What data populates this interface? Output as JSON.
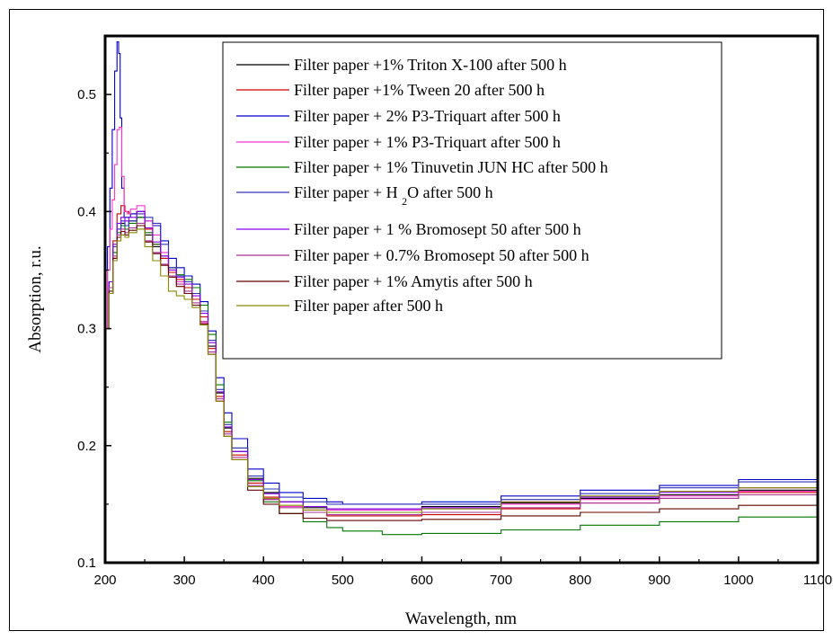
{
  "chart_data": {
    "type": "line",
    "xlabel": "Wavelength, nm",
    "ylabel": "Absorption, r.u.",
    "xlim": [
      200,
      1100
    ],
    "ylim": [
      0.1,
      0.55
    ],
    "x_ticks": [
      200,
      300,
      400,
      500,
      600,
      700,
      800,
      900,
      1000,
      1100
    ],
    "y_ticks": [
      0.1,
      0.2,
      0.3,
      0.4,
      0.5
    ],
    "grid": false,
    "legend_position": "top-right",
    "series": [
      {
        "name": "Filter paper +1% Triton X-100 after 500 h",
        "color": "#000000",
        "x": [
          200,
          205,
          210,
          215,
          220,
          225,
          230,
          240,
          250,
          260,
          270,
          280,
          290,
          300,
          310,
          320,
          330,
          340,
          350,
          360,
          380,
          400,
          420,
          450,
          480,
          500,
          600,
          700,
          800,
          900,
          1000,
          1100
        ],
        "y": [
          0.3,
          0.33,
          0.36,
          0.385,
          0.39,
          0.388,
          0.392,
          0.395,
          0.38,
          0.37,
          0.36,
          0.35,
          0.345,
          0.335,
          0.325,
          0.31,
          0.285,
          0.245,
          0.215,
          0.195,
          0.172,
          0.16,
          0.152,
          0.147,
          0.145,
          0.145,
          0.148,
          0.151,
          0.155,
          0.158,
          0.162,
          0.167
        ]
      },
      {
        "name": "Filter paper +1%  Tween 20 after 500 h",
        "color": "#cc0000",
        "x": [
          200,
          205,
          210,
          215,
          220,
          225,
          230,
          240,
          250,
          260,
          270,
          280,
          290,
          300,
          310,
          320,
          330,
          340,
          350,
          360,
          380,
          400,
          420,
          450,
          480,
          500,
          600,
          700,
          800,
          900,
          1000,
          1100
        ],
        "y": [
          0.3,
          0.34,
          0.375,
          0.398,
          0.405,
          0.4,
          0.398,
          0.4,
          0.385,
          0.372,
          0.36,
          0.348,
          0.342,
          0.335,
          0.325,
          0.31,
          0.283,
          0.242,
          0.212,
          0.192,
          0.168,
          0.156,
          0.148,
          0.143,
          0.14,
          0.14,
          0.141,
          0.146,
          0.151,
          0.155,
          0.16,
          0.165
        ]
      },
      {
        "name": "Filter paper + 2%  P3-Triquart after 500 h",
        "color": "#0000cc",
        "x": [
          200,
          203,
          206,
          209,
          212,
          215,
          217,
          219,
          221,
          224,
          228,
          232,
          240,
          250,
          260,
          270,
          280,
          290,
          300,
          310,
          320,
          330,
          340,
          350,
          360,
          380,
          400,
          420,
          450,
          480,
          500,
          600,
          700,
          800,
          900,
          1000,
          1100
        ],
        "y": [
          0.3,
          0.37,
          0.42,
          0.47,
          0.52,
          0.545,
          0.535,
          0.48,
          0.42,
          0.395,
          0.395,
          0.398,
          0.4,
          0.392,
          0.388,
          0.375,
          0.36,
          0.352,
          0.345,
          0.338,
          0.323,
          0.298,
          0.258,
          0.228,
          0.206,
          0.18,
          0.168,
          0.16,
          0.155,
          0.152,
          0.15,
          0.152,
          0.157,
          0.162,
          0.166,
          0.171,
          0.177
        ]
      },
      {
        "name": "Filter paper + 1%  P3-Triquart after 500 h",
        "color": "#ff33cc",
        "x": [
          200,
          203,
          206,
          209,
          212,
          215,
          218,
          221,
          224,
          228,
          232,
          240,
          250,
          260,
          270,
          280,
          290,
          300,
          310,
          320,
          330,
          340,
          350,
          360,
          380,
          400,
          420,
          450,
          480,
          500,
          600,
          700,
          800,
          900,
          1000,
          1100
        ],
        "y": [
          0.3,
          0.35,
          0.385,
          0.41,
          0.44,
          0.47,
          0.472,
          0.43,
          0.4,
          0.398,
          0.402,
          0.405,
          0.392,
          0.38,
          0.365,
          0.352,
          0.34,
          0.33,
          0.32,
          0.305,
          0.28,
          0.238,
          0.208,
          0.188,
          0.165,
          0.154,
          0.148,
          0.145,
          0.145,
          0.145,
          0.146,
          0.15,
          0.154,
          0.157,
          0.161,
          0.166
        ]
      },
      {
        "name": "Filter paper + 1%  Tinuvetin JUN HC after 500 h",
        "color": "#007700",
        "x": [
          200,
          205,
          210,
          215,
          220,
          225,
          230,
          240,
          250,
          260,
          270,
          280,
          290,
          300,
          310,
          320,
          330,
          340,
          350,
          360,
          380,
          400,
          420,
          450,
          480,
          500,
          550,
          600,
          700,
          800,
          900,
          1000,
          1100
        ],
        "y": [
          0.3,
          0.335,
          0.365,
          0.382,
          0.388,
          0.385,
          0.39,
          0.395,
          0.382,
          0.372,
          0.362,
          0.352,
          0.346,
          0.342,
          0.335,
          0.32,
          0.295,
          0.252,
          0.22,
          0.198,
          0.17,
          0.152,
          0.142,
          0.135,
          0.13,
          0.127,
          0.124,
          0.125,
          0.128,
          0.132,
          0.135,
          0.139,
          0.144
        ]
      },
      {
        "name": "Filter paper + H2O after 500 h",
        "color": "#3333bb",
        "x": [
          200,
          205,
          210,
          215,
          220,
          225,
          230,
          240,
          250,
          260,
          270,
          280,
          290,
          300,
          310,
          320,
          330,
          340,
          350,
          360,
          380,
          400,
          420,
          450,
          480,
          500,
          600,
          700,
          800,
          900,
          1000,
          1100
        ],
        "y": [
          0.3,
          0.34,
          0.37,
          0.385,
          0.392,
          0.388,
          0.392,
          0.398,
          0.395,
          0.39,
          0.372,
          0.352,
          0.345,
          0.34,
          0.33,
          0.315,
          0.29,
          0.248,
          0.218,
          0.198,
          0.174,
          0.163,
          0.156,
          0.152,
          0.15,
          0.15,
          0.15,
          0.154,
          0.159,
          0.164,
          0.169,
          0.174
        ]
      },
      {
        "name": "Filter paper + 1 %  Bromosept 50 after 500 h",
        "color": "#8800ee",
        "x": [
          200,
          205,
          210,
          215,
          220,
          225,
          230,
          240,
          250,
          260,
          270,
          280,
          290,
          300,
          310,
          320,
          330,
          340,
          350,
          360,
          380,
          400,
          420,
          450,
          480,
          500,
          600,
          700,
          800,
          900,
          1000,
          1100
        ],
        "y": [
          0.3,
          0.34,
          0.372,
          0.39,
          0.395,
          0.392,
          0.395,
          0.4,
          0.386,
          0.374,
          0.362,
          0.35,
          0.344,
          0.338,
          0.328,
          0.313,
          0.288,
          0.246,
          0.216,
          0.195,
          0.171,
          0.159,
          0.152,
          0.148,
          0.146,
          0.146,
          0.147,
          0.152,
          0.156,
          0.16,
          0.164,
          0.169
        ]
      },
      {
        "name": "Filter paper + 0.7%  Bromosept 50 after 500 h",
        "color": "#aa3399",
        "x": [
          200,
          205,
          210,
          215,
          220,
          225,
          230,
          240,
          250,
          260,
          270,
          280,
          290,
          300,
          310,
          320,
          330,
          340,
          350,
          360,
          380,
          400,
          420,
          450,
          480,
          500,
          600,
          700,
          800,
          900,
          1000,
          1100
        ],
        "y": [
          0.3,
          0.335,
          0.362,
          0.38,
          0.385,
          0.382,
          0.386,
          0.39,
          0.375,
          0.365,
          0.355,
          0.345,
          0.338,
          0.332,
          0.322,
          0.306,
          0.28,
          0.24,
          0.21,
          0.19,
          0.166,
          0.154,
          0.147,
          0.143,
          0.141,
          0.141,
          0.143,
          0.147,
          0.151,
          0.155,
          0.158,
          0.162
        ]
      },
      {
        "name": "Filter paper + 1%  Amytis after 500 h",
        "color": "#660000",
        "x": [
          200,
          205,
          210,
          215,
          220,
          225,
          230,
          240,
          250,
          260,
          270,
          280,
          290,
          300,
          310,
          320,
          330,
          340,
          350,
          360,
          380,
          400,
          420,
          450,
          480,
          500,
          600,
          700,
          800,
          900,
          1000,
          1100
        ],
        "y": [
          0.3,
          0.332,
          0.36,
          0.378,
          0.383,
          0.38,
          0.384,
          0.388,
          0.374,
          0.364,
          0.354,
          0.344,
          0.336,
          0.33,
          0.32,
          0.304,
          0.278,
          0.238,
          0.208,
          0.188,
          0.162,
          0.15,
          0.142,
          0.138,
          0.136,
          0.136,
          0.137,
          0.14,
          0.143,
          0.146,
          0.149,
          0.152
        ]
      },
      {
        "name": "Filter paper after 500 h",
        "color": "#888800",
        "x": [
          200,
          205,
          210,
          215,
          220,
          225,
          230,
          240,
          250,
          260,
          270,
          280,
          290,
          300,
          310,
          320,
          330,
          340,
          350,
          360,
          380,
          400,
          420,
          450,
          480,
          500,
          600,
          700,
          800,
          900,
          1000,
          1100
        ],
        "y": [
          0.3,
          0.33,
          0.358,
          0.375,
          0.38,
          0.378,
          0.382,
          0.385,
          0.37,
          0.358,
          0.345,
          0.332,
          0.328,
          0.325,
          0.318,
          0.303,
          0.278,
          0.238,
          0.208,
          0.188,
          0.165,
          0.155,
          0.149,
          0.145,
          0.143,
          0.143,
          0.146,
          0.152,
          0.157,
          0.161,
          0.164,
          0.167
        ]
      }
    ]
  }
}
